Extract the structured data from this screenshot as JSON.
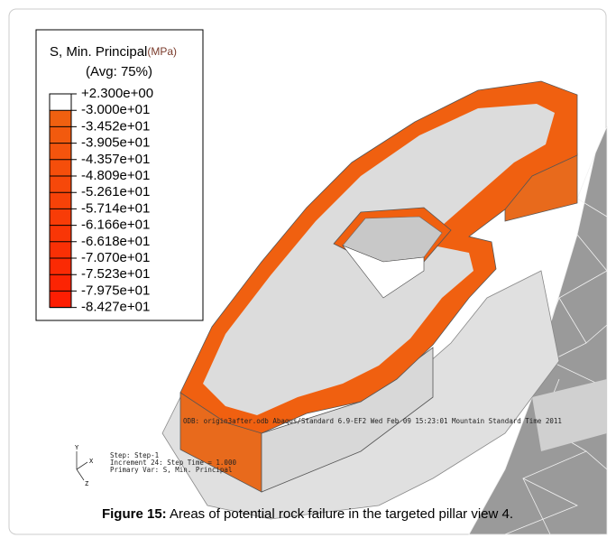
{
  "legend": {
    "title": "S, Min. Principal",
    "unit": "(MPa)",
    "avg": "(Avg: 75%)",
    "entries": [
      "+2.300e+00",
      "-3.000e+01",
      "-3.452e+01",
      "-3.905e+01",
      "-4.357e+01",
      "-4.809e+01",
      "-5.261e+01",
      "-5.714e+01",
      "-6.166e+01",
      "-6.618e+01",
      "-7.070e+01",
      "-7.523e+01",
      "-7.975e+01",
      "-8.427e+01"
    ],
    "colors": [
      "#ffffff",
      "#f06010",
      "#f25a0e",
      "#f4540d",
      "#f54e0b",
      "#f6480a",
      "#f74208",
      "#f83c07",
      "#f93606",
      "#fa3005",
      "#fb2a04",
      "#fc2403",
      "#fd1e02"
    ]
  },
  "info": {
    "odb": "ODB: origin3after.odb    Abaqus/Standard 6.9-EF2    Wed Feb 09 15:23:01 Mountain Standard Time 2011",
    "step": "Step: Step-1",
    "increment": "Increment     24: Step Time =    1.000",
    "primary": "Primary Var: S, Min. Principal"
  },
  "triad": {
    "y": "Y",
    "x": "X",
    "z": "Z"
  },
  "caption": {
    "label": "Figure 15:",
    "text": " Areas of potential rock failure in the targeted pillar view 4."
  }
}
